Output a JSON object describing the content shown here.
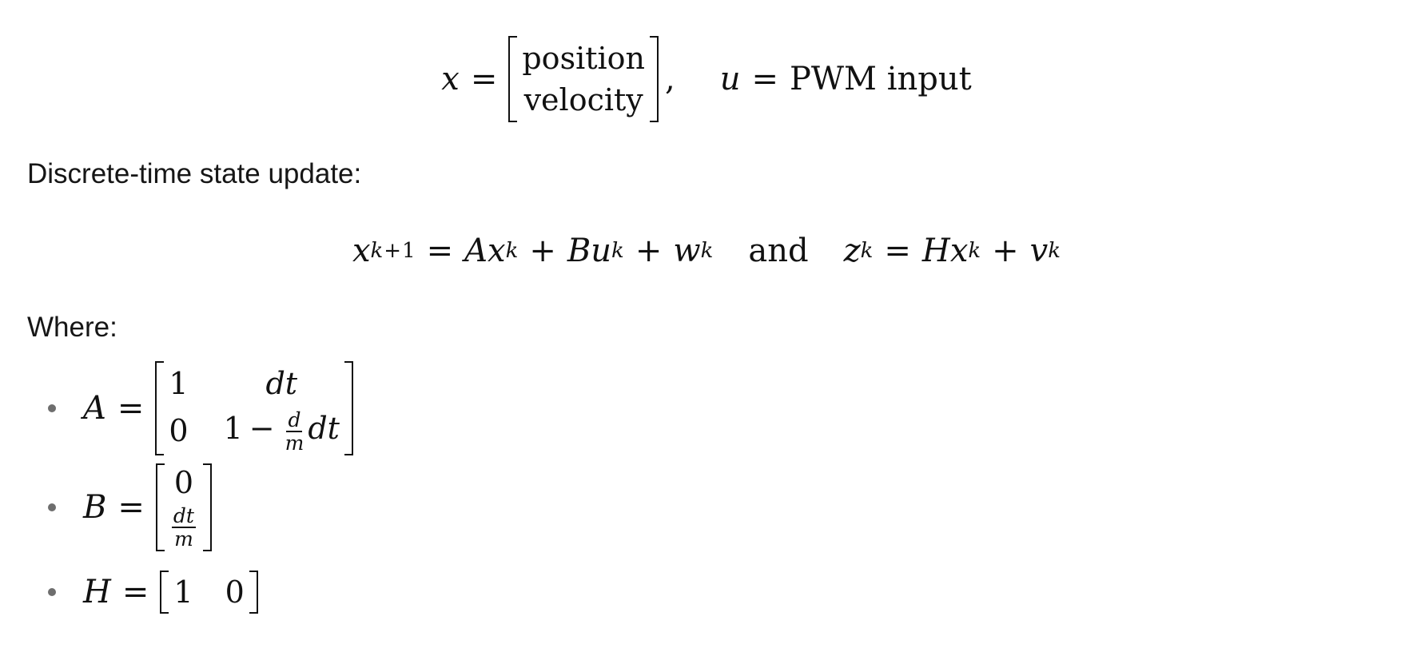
{
  "state_definition": {
    "lhs_var": "x",
    "equals": "=",
    "vector_entries": [
      "position",
      "velocity"
    ],
    "separator": ",",
    "input_var": "u",
    "input_equals": "=",
    "input_text": "PWM input"
  },
  "prose": {
    "discrete_label": "Discrete-time state update:",
    "where_label": "Where:"
  },
  "update_equation": {
    "lhs_var": "x",
    "lhs_sub": "k+1",
    "equals": "=",
    "term1_coef": "A",
    "term1_var": "x",
    "term1_sub": "k",
    "plus1": "+",
    "term2_coef": "B",
    "term2_var": "u",
    "term2_sub": "k",
    "plus2": "+",
    "term3_var": "w",
    "term3_sub": "k",
    "conjunction": "and",
    "meas_var": "z",
    "meas_sub": "k",
    "meas_equals": "=",
    "meas_coef": "H",
    "meas_state_var": "x",
    "meas_state_sub": "k",
    "meas_plus": "+",
    "noise_var": "v",
    "noise_sub": "k"
  },
  "definitions": {
    "A": {
      "name": "A",
      "equals": "=",
      "r1c1": "1",
      "r1c2": "dt",
      "r2c1": "0",
      "r2c2_lead": "1",
      "r2c2_minus": "−",
      "r2c2_frac_num": "d",
      "r2c2_frac_den": "m",
      "r2c2_tail": "dt"
    },
    "B": {
      "name": "B",
      "equals": "=",
      "r1": "0",
      "r2_frac_num": "dt",
      "r2_frac_den": "m"
    },
    "H": {
      "name": "H",
      "equals": "=",
      "c1": "1",
      "c2": "0"
    }
  }
}
